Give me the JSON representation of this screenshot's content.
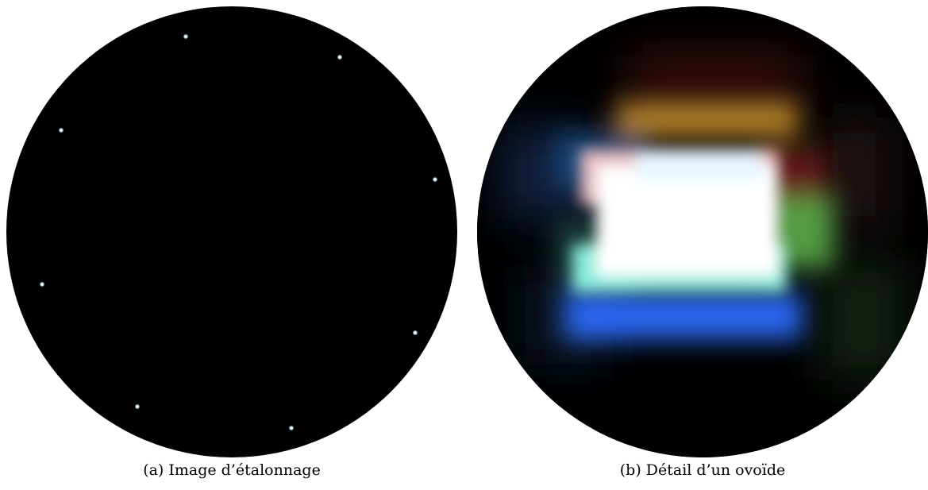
{
  "panel_a": {
    "caption": "(a) Image d’étalonnage",
    "background_color": "#000000",
    "calibration_dot_color": "#e8f6ff",
    "calibration_dot_count": 8
  },
  "panel_b": {
    "caption": "(b) Détail d’un ovoïde",
    "palette": {
      "core": "#ffffff",
      "pink": "#ffc8c8",
      "cyan": "#8ff4e4",
      "blue": "#2d6dff",
      "orange": "#d2962d",
      "green": "#6ecf5a",
      "dark_red": "#6e1e1e",
      "navy": "#1e3264"
    }
  }
}
